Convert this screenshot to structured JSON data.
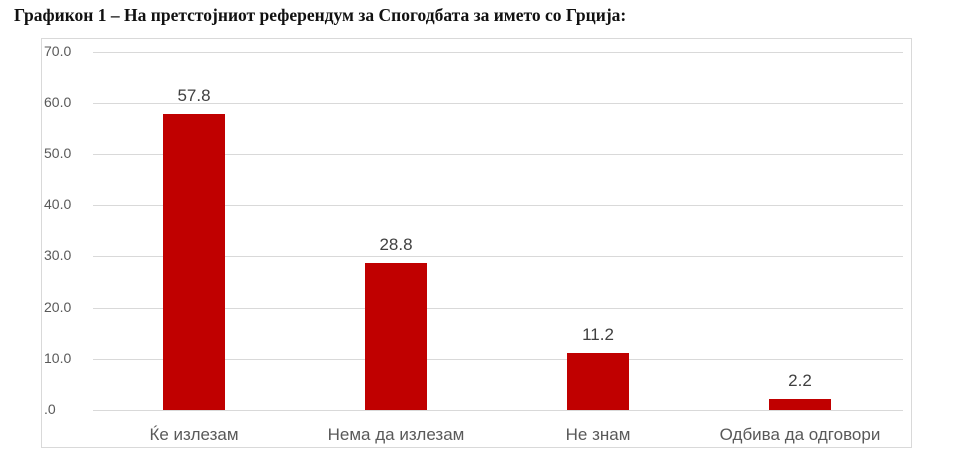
{
  "title": "Графикон 1 – На претстојниот референдум за Спогодбата за името со Грција:",
  "colors": {
    "bar": "#c00000",
    "grid": "#d9d9d9",
    "axis_text": "#595959",
    "label_text": "#404040"
  },
  "chart_data": {
    "type": "bar",
    "title": "Графикон 1 – На претстојниот референдум за Спогодбата за името со Грција:",
    "categories": [
      "Ќе излезам",
      "Нема да излезам",
      "Не знам",
      "Одбива да одговори"
    ],
    "values": [
      57.8,
      28.8,
      11.2,
      2.2
    ],
    "value_labels": [
      "57.8",
      "28.8",
      "11.2",
      "2.2"
    ],
    "xlabel": "",
    "ylabel": "",
    "ylim": [
      0,
      70
    ],
    "yticks": [
      ".0",
      "10.0",
      "20.0",
      "30.0",
      "40.0",
      "50.0",
      "60.0",
      "70.0"
    ],
    "grid": true,
    "legend": null
  }
}
